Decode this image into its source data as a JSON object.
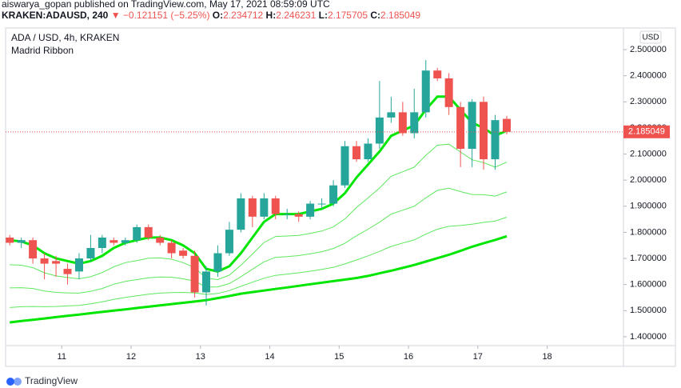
{
  "chart_data": {
    "type": "candlestick",
    "header": "aiswarya_gopan published on TradingView.com, May 17, 2021 08:59:09 UTC",
    "symbol": "KRAKEN:ADAUSD, 240",
    "change": "▼ −0.121151 (−5.25%)",
    "ohlc_labels": [
      "O:",
      "H:",
      "L:",
      "C:"
    ],
    "title": "ADA / USD, 4h, KRAKEN",
    "indicator": "Madrid Ribbon",
    "currency": "USD",
    "brand": "TradingView",
    "up_color": "#26a69a",
    "down_color": "#ef5350",
    "grid": false,
    "x": [
      10.25,
      10.417,
      10.583,
      10.75,
      10.917,
      11.083,
      11.25,
      11.417,
      11.583,
      11.75,
      11.917,
      12.083,
      12.25,
      12.417,
      12.583,
      12.75,
      12.917,
      13.083,
      13.25,
      13.417,
      13.583,
      13.75,
      13.917,
      14.083,
      14.25,
      14.417,
      14.583,
      14.75,
      14.917,
      15.083,
      15.25,
      15.417,
      15.583,
      15.75,
      15.917,
      16.083,
      16.25,
      16.417,
      16.583,
      16.75,
      16.917,
      17.083,
      17.25,
      17.417
    ],
    "open": [
      1.78,
      1.76,
      1.77,
      1.7,
      1.69,
      1.66,
      1.65,
      1.7,
      1.74,
      1.77,
      1.76,
      1.77,
      1.82,
      1.78,
      1.76,
      1.73,
      1.71,
      1.57,
      1.65,
      1.72,
      1.81,
      1.93,
      1.86,
      1.93,
      1.87,
      1.87,
      1.86,
      1.91,
      1.91,
      1.98,
      2.13,
      2.08,
      2.14,
      2.24,
      2.26,
      2.18,
      2.26,
      2.42,
      2.39,
      2.28,
      2.12,
      2.3,
      2.08,
      2.234712
    ],
    "high": [
      1.79,
      1.78,
      1.78,
      1.72,
      1.71,
      1.68,
      1.72,
      1.79,
      1.79,
      1.78,
      1.78,
      1.83,
      1.83,
      1.79,
      1.77,
      1.74,
      1.73,
      1.67,
      1.75,
      1.84,
      1.95,
      1.94,
      1.95,
      1.94,
      1.89,
      1.88,
      1.92,
      1.93,
      2.0,
      2.15,
      2.15,
      2.16,
      2.38,
      2.32,
      2.3,
      2.35,
      2.46,
      2.43,
      2.41,
      2.3,
      2.31,
      2.32,
      2.25,
      2.246231
    ],
    "low": [
      1.75,
      1.74,
      1.68,
      1.62,
      1.63,
      1.6,
      1.62,
      1.69,
      1.72,
      1.75,
      1.75,
      1.76,
      1.77,
      1.75,
      1.7,
      1.7,
      1.55,
      1.52,
      1.63,
      1.71,
      1.8,
      1.82,
      1.85,
      1.85,
      1.85,
      1.84,
      1.85,
      1.89,
      1.9,
      1.97,
      2.07,
      2.07,
      2.12,
      2.22,
      2.17,
      2.16,
      2.24,
      2.38,
      2.25,
      2.05,
      2.05,
      2.04,
      2.04,
      2.175705
    ],
    "close": [
      1.76,
      1.77,
      1.7,
      1.68,
      1.68,
      1.64,
      1.7,
      1.74,
      1.78,
      1.76,
      1.77,
      1.82,
      1.78,
      1.76,
      1.72,
      1.71,
      1.57,
      1.65,
      1.72,
      1.81,
      1.93,
      1.86,
      1.93,
      1.87,
      1.87,
      1.86,
      1.91,
      1.91,
      1.98,
      2.13,
      2.08,
      2.14,
      2.24,
      2.26,
      2.18,
      2.26,
      2.42,
      2.39,
      2.28,
      2.12,
      2.3,
      2.08,
      2.23,
      2.185049
    ],
    "series": [
      {
        "color": "#00e600",
        "width": 3,
        "values": [
          1.77,
          1.765,
          1.75,
          1.72,
          1.7,
          1.69,
          1.68,
          1.69,
          1.71,
          1.74,
          1.76,
          1.77,
          1.78,
          1.78,
          1.77,
          1.75,
          1.72,
          1.66,
          1.65,
          1.67,
          1.72,
          1.78,
          1.84,
          1.87,
          1.87,
          1.87,
          1.88,
          1.89,
          1.91,
          1.95,
          2.01,
          2.06,
          2.11,
          2.17,
          2.19,
          2.21,
          2.27,
          2.32,
          2.32,
          2.27,
          2.22,
          2.2,
          2.17,
          2.19
        ]
      },
      {
        "color": "#5ee85e",
        "width": 1,
        "values": [
          1.676,
          1.674,
          1.665,
          1.645,
          1.633,
          1.627,
          1.622,
          1.63,
          1.646,
          1.668,
          1.684,
          1.692,
          1.701,
          1.702,
          1.697,
          1.684,
          1.665,
          1.624,
          1.619,
          1.636,
          1.674,
          1.717,
          1.761,
          1.784,
          1.786,
          1.788,
          1.796,
          1.805,
          1.821,
          1.851,
          1.895,
          1.932,
          1.97,
          2.015,
          2.032,
          2.05,
          2.095,
          2.134,
          2.138,
          2.108,
          2.078,
          2.067,
          2.05,
          2.069
        ]
      },
      {
        "color": "#5ee85e",
        "width": 1,
        "values": [
          1.587,
          1.588,
          1.585,
          1.575,
          1.57,
          1.568,
          1.567,
          1.574,
          1.585,
          1.601,
          1.612,
          1.619,
          1.626,
          1.629,
          1.628,
          1.622,
          1.613,
          1.59,
          1.591,
          1.604,
          1.63,
          1.659,
          1.687,
          1.704,
          1.707,
          1.711,
          1.718,
          1.726,
          1.738,
          1.758,
          1.787,
          1.812,
          1.839,
          1.87,
          1.885,
          1.9,
          1.932,
          1.961,
          1.969,
          1.956,
          1.945,
          1.944,
          1.939,
          1.955
        ]
      },
      {
        "color": "#5ee85e",
        "width": 1,
        "values": [
          1.512,
          1.515,
          1.516,
          1.515,
          1.516,
          1.518,
          1.52,
          1.526,
          1.534,
          1.543,
          1.551,
          1.557,
          1.563,
          1.567,
          1.569,
          1.57,
          1.568,
          1.562,
          1.566,
          1.577,
          1.593,
          1.609,
          1.624,
          1.635,
          1.64,
          1.645,
          1.651,
          1.658,
          1.666,
          1.679,
          1.694,
          1.71,
          1.727,
          1.746,
          1.759,
          1.771,
          1.793,
          1.812,
          1.823,
          1.826,
          1.831,
          1.838,
          1.843,
          1.858
        ]
      },
      {
        "color": "#00e600",
        "width": 3,
        "values": [
          1.455,
          1.46,
          1.465,
          1.47,
          1.475,
          1.48,
          1.485,
          1.49,
          1.495,
          1.5,
          1.505,
          1.51,
          1.515,
          1.52,
          1.525,
          1.53,
          1.535,
          1.54,
          1.548,
          1.556,
          1.565,
          1.571,
          1.577,
          1.583,
          1.589,
          1.595,
          1.601,
          1.607,
          1.613,
          1.619,
          1.625,
          1.633,
          1.643,
          1.653,
          1.664,
          1.675,
          1.688,
          1.701,
          1.714,
          1.729,
          1.745,
          1.758,
          1.771,
          1.785
        ]
      }
    ],
    "xlim": [
      10.19,
      19.1
    ],
    "xticks": [
      11,
      12,
      13,
      14,
      15,
      16,
      17,
      18
    ],
    "ylim": [
      1.366,
      2.583
    ],
    "yticks": [
      {
        "value": 1.4,
        "label": "1.400000"
      },
      {
        "value": 1.5,
        "label": "1.500000"
      },
      {
        "value": 1.6,
        "label": "1.600000"
      },
      {
        "value": 1.7,
        "label": "1.700000"
      },
      {
        "value": 1.8,
        "label": "1.800000"
      },
      {
        "value": 1.9,
        "label": "1.900000"
      },
      {
        "value": 2.0,
        "label": "2.000000"
      },
      {
        "value": 2.1,
        "label": "2.100000"
      },
      {
        "value": 2.2,
        "label": "2.200000"
      },
      {
        "value": 2.3,
        "label": "2.300000"
      },
      {
        "value": 2.4,
        "label": "2.400000"
      },
      {
        "value": 2.5,
        "label": "2.500000"
      }
    ]
  }
}
